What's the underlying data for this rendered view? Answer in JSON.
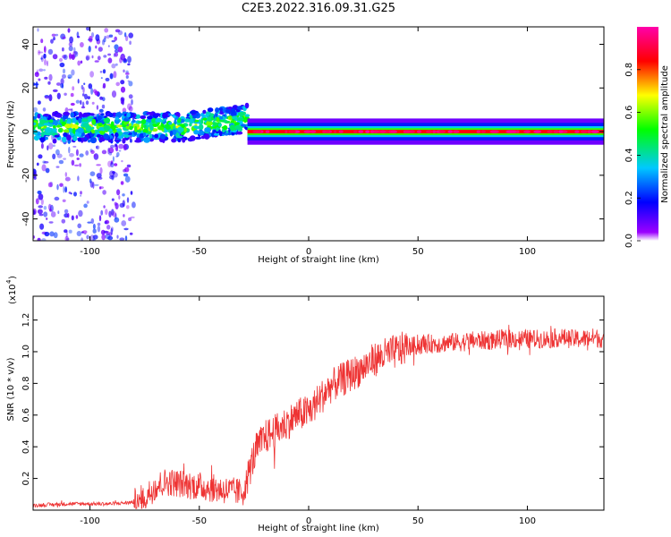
{
  "title": "C2E3.2022.316.09.31.G25",
  "chart_data": [
    {
      "type": "heatmap",
      "title": "C2E3.2022.316.09.31.G25",
      "xlabel": "Height of straight line (km)",
      "ylabel": "Frequency (Hz)",
      "xlim": [
        -126,
        135
      ],
      "ylim": [
        -50,
        48
      ],
      "xticks": [
        -100,
        -50,
        0,
        50,
        100
      ],
      "yticks": [
        -40,
        -20,
        0,
        20,
        40
      ],
      "colorbar": {
        "label": "Normalized spectral amplitude",
        "range": [
          0.0,
          1.0
        ],
        "ticks": [
          "0.0",
          "0.2",
          "0.4",
          "0.6",
          "0.8"
        ],
        "colors": [
          "#9b00ff",
          "#0000ff",
          "#00c8ff",
          "#00ff00",
          "#ffff00",
          "#ff0000",
          "#ff00aa"
        ]
      },
      "features": [
        {
          "x_range": [
            -126,
            -80
          ],
          "description": "scattered noise",
          "freq_range": [
            -50,
            48
          ],
          "amplitude": 0.05
        },
        {
          "x_range": [
            -126,
            -28
          ],
          "center_freq": 2,
          "width_hz": 8,
          "amplitude": 0.3
        },
        {
          "x_range": [
            -28,
            135
          ],
          "center_freq": 0,
          "width_hz": 3,
          "amplitude": 0.9
        }
      ]
    },
    {
      "type": "line",
      "xlabel": "Height of straight line (km)",
      "ylabel": "SNR (10 * v/v)",
      "y_scale_label": "(x10",
      "y_scale_exp": "4",
      "xlim": [
        -126,
        135
      ],
      "ylim": [
        0,
        1.35
      ],
      "xticks": [
        -100,
        -50,
        0,
        50,
        100
      ],
      "yticks": [
        0.2,
        0.4,
        0.6,
        0.8,
        1.0,
        1.2
      ],
      "ytick_labels": [
        "0.2",
        "0.4",
        "0.6",
        "0.8",
        "1.0",
        "1.2"
      ],
      "series": [
        {
          "color": "#ee3333",
          "x": [
            -126,
            -110,
            -100,
            -90,
            -80,
            -75,
            -70,
            -65,
            -60,
            -55,
            -50,
            -45,
            -40,
            -35,
            -30,
            -28,
            -26,
            -24,
            -22,
            -20,
            -15,
            -10,
            -5,
            0,
            5,
            10,
            15,
            20,
            25,
            30,
            35,
            40,
            45,
            50,
            55,
            60,
            65,
            70,
            75,
            80,
            85,
            88,
            90,
            95,
            100,
            105,
            110,
            115,
            120,
            125,
            130,
            135
          ],
          "y": [
            0.03,
            0.04,
            0.04,
            0.04,
            0.05,
            0.08,
            0.15,
            0.18,
            0.17,
            0.16,
            0.15,
            0.14,
            0.13,
            0.12,
            0.11,
            0.2,
            0.3,
            0.38,
            0.42,
            0.46,
            0.5,
            0.55,
            0.6,
            0.62,
            0.7,
            0.78,
            0.82,
            0.86,
            0.9,
            0.95,
            0.98,
            1.0,
            1.03,
            1.04,
            1.05,
            1.05,
            1.06,
            1.06,
            1.07,
            1.07,
            1.07,
            1.08,
            1.08,
            1.08,
            1.08,
            1.08,
            1.08,
            1.09,
            1.08,
            1.08,
            1.09,
            1.08
          ]
        }
      ]
    }
  ]
}
